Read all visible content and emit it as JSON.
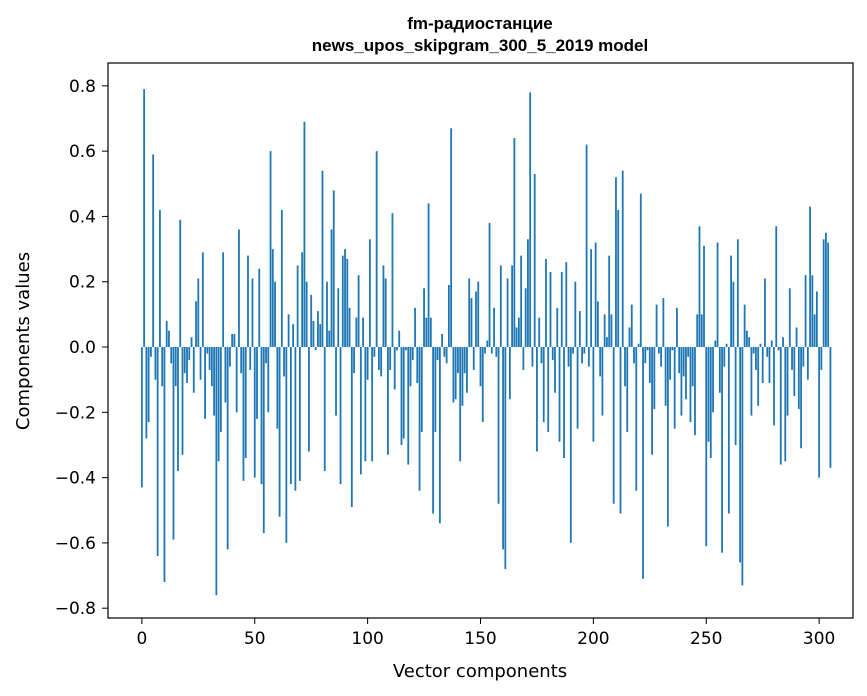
{
  "chart_data": {
    "type": "bar",
    "title_line1": "fm-радиостанцие",
    "title_line2": "news_upos_skipgram_300_5_2019 model",
    "xlabel": "Vector components",
    "ylabel": "Components values",
    "xlim": [
      -15,
      315
    ],
    "ylim": [
      -0.83,
      0.87
    ],
    "xticks": [
      0,
      50,
      100,
      150,
      200,
      250,
      300
    ],
    "xtick_labels": [
      "0",
      "50",
      "100",
      "150",
      "200",
      "250",
      "300"
    ],
    "yticks": [
      -0.8,
      -0.6,
      -0.4,
      -0.2,
      0.0,
      0.2,
      0.4,
      0.6,
      0.8
    ],
    "ytick_labels": [
      "−0.8",
      "−0.6",
      "−0.4",
      "−0.2",
      "0.0",
      "0.2",
      "0.4",
      "0.6",
      "0.8"
    ],
    "bar_color": "#1f77b4",
    "grid": false,
    "values": [
      -0.43,
      0.79,
      -0.28,
      -0.23,
      -0.03,
      0.59,
      -0.1,
      -0.64,
      0.42,
      -0.12,
      -0.72,
      0.08,
      0.05,
      -0.05,
      -0.59,
      -0.12,
      -0.38,
      0.39,
      -0.33,
      -0.08,
      -0.11,
      -0.04,
      0.03,
      -0.14,
      0.14,
      0.21,
      -0.1,
      0.29,
      -0.22,
      -0.02,
      -0.07,
      -0.12,
      -0.21,
      -0.76,
      -0.35,
      -0.26,
      0.29,
      -0.17,
      -0.62,
      -0.06,
      0.04,
      0.04,
      -0.2,
      0.36,
      -0.08,
      -0.41,
      -0.34,
      0.28,
      -0.07,
      0.21,
      -0.4,
      -0.22,
      0.24,
      -0.42,
      -0.57,
      -0.05,
      -0.2,
      0.6,
      0.3,
      0.2,
      -0.25,
      -0.52,
      0.42,
      -0.09,
      -0.6,
      0.1,
      -0.42,
      0.07,
      -0.44,
      0.25,
      -0.41,
      0.29,
      0.69,
      0.2,
      -0.32,
      0.16,
      0.08,
      -0.01,
      0.11,
      0.07,
      0.54,
      -0.38,
      0.2,
      0.05,
      0.36,
      0.48,
      -0.21,
      0.18,
      -0.42,
      0.28,
      0.3,
      0.27,
      0.12,
      -0.49,
      -0.08,
      0.09,
      0.22,
      -0.39,
      0.09,
      -0.35,
      -0.1,
      0.33,
      -0.35,
      -0.03,
      0.6,
      -0.07,
      -0.09,
      0.25,
      0.21,
      -0.33,
      -0.07,
      0.41,
      -0.13,
      -0.01,
      0.05,
      -0.3,
      -0.28,
      -0.01,
      -0.36,
      -0.12,
      -0.04,
      0.12,
      -0.11,
      -0.44,
      -0.26,
      0.18,
      0.09,
      0.44,
      0.09,
      -0.51,
      -0.26,
      -0.04,
      -0.54,
      0.04,
      -0.03,
      -0.05,
      0.19,
      0.67,
      -0.17,
      -0.16,
      -0.08,
      -0.35,
      -0.18,
      -0.08,
      -0.14,
      0.21,
      0.15,
      -0.07,
      0.17,
      0.2,
      -0.12,
      -0.23,
      -0.02,
      0.02,
      0.38,
      -0.02,
      0.12,
      -0.03,
      -0.48,
      0.25,
      -0.62,
      -0.68,
      0.21,
      -0.16,
      0.25,
      0.64,
      0.06,
      0.09,
      0.28,
      -0.07,
      0.18,
      0.33,
      0.78,
      -0.06,
      0.53,
      -0.32,
      0.09,
      -0.05,
      -0.23,
      0.27,
      -0.26,
      0.23,
      -0.04,
      -0.14,
      0.12,
      -0.29,
      0.23,
      -0.34,
      0.26,
      -0.06,
      -0.6,
      -0.02,
      0.2,
      -0.25,
      0.11,
      -0.05,
      -0.02,
      0.62,
      -0.06,
      0.3,
      -0.29,
      0.32,
      0.14,
      -0.09,
      -0.21,
      0.1,
      0.03,
      0.28,
      0.1,
      -0.48,
      0.52,
      0.42,
      -0.51,
      0.54,
      -0.12,
      -0.26,
      0.06,
      0.13,
      -0.05,
      -0.44,
      0.01,
      0.47,
      -0.71,
      -0.05,
      -0.01,
      -0.11,
      -0.33,
      -0.19,
      0.13,
      -0.02,
      -0.06,
      0.15,
      -0.18,
      -0.55,
      -0.1,
      -0.01,
      -0.25,
      0.12,
      -0.08,
      -0.21,
      -0.09,
      -0.16,
      -0.03,
      -0.23,
      -0.12,
      -0.27,
      0.1,
      0.37,
      0.1,
      0.31,
      -0.61,
      -0.29,
      -0.34,
      -0.2,
      0.02,
      0.32,
      -0.14,
      -0.63,
      -0.06,
      0.01,
      -0.51,
      0.28,
      0.2,
      -0.3,
      0.33,
      -0.66,
      -0.73,
      0.13,
      0.05,
      0.03,
      -0.21,
      -0.02,
      -0.07,
      -0.18,
      0.01,
      -0.11,
      0.21,
      -0.03,
      -0.11,
      0.02,
      -0.24,
      0.37,
      -0.01,
      -0.36,
      0.03,
      -0.35,
      -0.21,
      0.18,
      -0.07,
      -0.15,
      0.06,
      -0.19,
      -0.31,
      -0.06,
      0.22,
      -0.1,
      0.43,
      0.22,
      0.1,
      0.17,
      -0.4,
      -0.07,
      0.33,
      0.35,
      0.32,
      -0.37,
      0.0,
      0.0,
      0.0
    ]
  }
}
